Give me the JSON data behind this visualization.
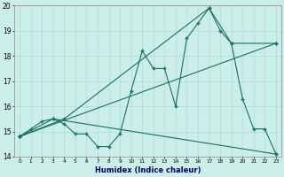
{
  "xlabel": "Humidex (Indice chaleur)",
  "background_color": "#cceee8",
  "grid_color": "#aaddda",
  "line_color": "#1a7060",
  "line1": [
    [
      0,
      14.8
    ],
    [
      1,
      15.1
    ],
    [
      2,
      15.4
    ],
    [
      3,
      15.5
    ],
    [
      4,
      15.3
    ],
    [
      5,
      14.9
    ],
    [
      6,
      14.9
    ],
    [
      7,
      14.4
    ],
    [
      8,
      14.4
    ],
    [
      9,
      14.9
    ],
    [
      10,
      16.6
    ],
    [
      11,
      18.2
    ],
    [
      12,
      17.5
    ],
    [
      13,
      17.5
    ],
    [
      14,
      16.0
    ],
    [
      15,
      18.7
    ],
    [
      16,
      19.3
    ],
    [
      17,
      19.9
    ],
    [
      18,
      19.0
    ],
    [
      19,
      18.5
    ],
    [
      20,
      16.3
    ],
    [
      21,
      15.1
    ],
    [
      22,
      15.1
    ],
    [
      23,
      14.1
    ]
  ],
  "line2": [
    [
      0,
      14.8
    ],
    [
      23,
      18.5
    ]
  ],
  "line3": [
    [
      0,
      14.8
    ],
    [
      4,
      15.5
    ],
    [
      17,
      19.9
    ],
    [
      19,
      18.5
    ],
    [
      23,
      18.5
    ]
  ],
  "line4": [
    [
      0,
      14.8
    ],
    [
      3,
      15.5
    ],
    [
      23,
      14.1
    ]
  ],
  "ylim": [
    14,
    20
  ],
  "xlim": [
    0,
    23
  ],
  "yticks": [
    14,
    15,
    16,
    17,
    18,
    19,
    20
  ],
  "xticks": [
    0,
    1,
    2,
    3,
    4,
    5,
    6,
    7,
    8,
    9,
    10,
    11,
    12,
    13,
    14,
    15,
    16,
    17,
    18,
    19,
    20,
    21,
    22,
    23
  ]
}
